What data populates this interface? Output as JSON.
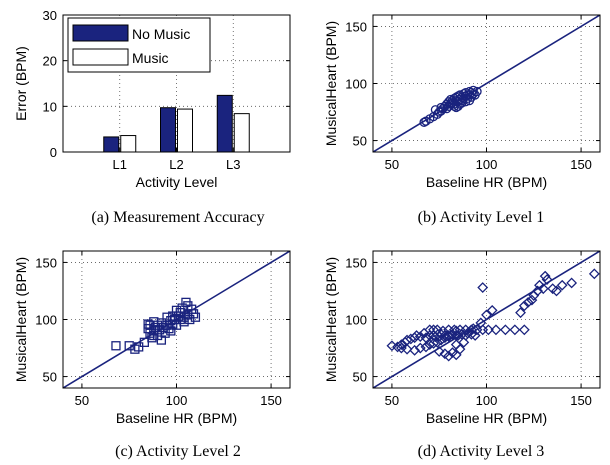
{
  "colors": {
    "primary": "#1a237e",
    "light": "#ffffff",
    "grid": "#555555",
    "fill": "#1a237e"
  },
  "chart_data": [
    {
      "type": "bar",
      "caption": "(a)  Measurement Accuracy",
      "categories": [
        "L1",
        "L2",
        "L3"
      ],
      "series": [
        {
          "name": "No Music",
          "values": [
            3.3,
            9.7,
            12.4
          ],
          "color": "#1a237e"
        },
        {
          "name": "Music",
          "values": [
            3.6,
            9.4,
            8.4
          ],
          "color": "#ffffff"
        }
      ],
      "xlabel": "Activity Level",
      "ylabel": "Error (BPM)",
      "ylim": [
        0,
        30
      ],
      "yticks": [
        0,
        10,
        20,
        30
      ],
      "grid": true,
      "legend": "top-left"
    },
    {
      "type": "scatter",
      "caption": "(b)  Activity Level 1",
      "marker": "circle",
      "xlabel": "Baseline HR (BPM)",
      "ylabel": "MusicalHeart (BPM)",
      "xlim": [
        40,
        160
      ],
      "ylim": [
        40,
        160
      ],
      "xticks": [
        50,
        100,
        150
      ],
      "yticks": [
        50,
        100,
        150
      ],
      "grid": true,
      "identity_line": [
        [
          40,
          40
        ],
        [
          160,
          160
        ]
      ],
      "points": [
        [
          68,
          67
        ],
        [
          67,
          66
        ],
        [
          70,
          69
        ],
        [
          72,
          71
        ],
        [
          74,
          73
        ],
        [
          75,
          75
        ],
        [
          73,
          77
        ],
        [
          76,
          76
        ],
        [
          76,
          79
        ],
        [
          77,
          78
        ],
        [
          78,
          80
        ],
        [
          79,
          78
        ],
        [
          79,
          82
        ],
        [
          80,
          80
        ],
        [
          80,
          84
        ],
        [
          81,
          82
        ],
        [
          81,
          86
        ],
        [
          82,
          83
        ],
        [
          82,
          85
        ],
        [
          83,
          87
        ],
        [
          83,
          82
        ],
        [
          84,
          88
        ],
        [
          84,
          85
        ],
        [
          85,
          84
        ],
        [
          85,
          89
        ],
        [
          86,
          86
        ],
        [
          86,
          90
        ],
        [
          87,
          88
        ],
        [
          87,
          85
        ],
        [
          88,
          91
        ],
        [
          88,
          87
        ],
        [
          89,
          89
        ],
        [
          89,
          92
        ],
        [
          90,
          90
        ],
        [
          90,
          87
        ],
        [
          91,
          93
        ],
        [
          91,
          90
        ],
        [
          92,
          92
        ],
        [
          92,
          88
        ],
        [
          93,
          94
        ],
        [
          93,
          91
        ],
        [
          94,
          90
        ],
        [
          95,
          93
        ],
        [
          85,
          80
        ],
        [
          84,
          79
        ],
        [
          87,
          83
        ],
        [
          86,
          82
        ],
        [
          89,
          84
        ],
        [
          83,
          80
        ],
        [
          91,
          85
        ]
      ]
    },
    {
      "type": "scatter",
      "caption": "(c)  Activity Level 2",
      "marker": "square",
      "xlabel": "Baseline HR (BPM)",
      "ylabel": "MusicalHeart (BPM)",
      "xlim": [
        40,
        160
      ],
      "ylim": [
        40,
        160
      ],
      "xticks": [
        50,
        100,
        150
      ],
      "yticks": [
        50,
        100,
        150
      ],
      "grid": true,
      "identity_line": [
        [
          40,
          40
        ],
        [
          160,
          160
        ]
      ],
      "points": [
        [
          68,
          77
        ],
        [
          75,
          77
        ],
        [
          78,
          74
        ],
        [
          80,
          76
        ],
        [
          83,
          80
        ],
        [
          85,
          92
        ],
        [
          85,
          96
        ],
        [
          86,
          88
        ],
        [
          87,
          84
        ],
        [
          88,
          90
        ],
        [
          88,
          98
        ],
        [
          89,
          93
        ],
        [
          90,
          95
        ],
        [
          90,
          86
        ],
        [
          91,
          91
        ],
        [
          92,
          97
        ],
        [
          92,
          82
        ],
        [
          93,
          93
        ],
        [
          94,
          88
        ],
        [
          95,
          95
        ],
        [
          96,
          92
        ],
        [
          97,
          99
        ],
        [
          98,
          96
        ],
        [
          98,
          103
        ],
        [
          99,
          100
        ],
        [
          100,
          95
        ],
        [
          100,
          108
        ],
        [
          101,
          103
        ],
        [
          102,
          100
        ],
        [
          103,
          110
        ],
        [
          104,
          98
        ],
        [
          105,
          115
        ],
        [
          106,
          104
        ],
        [
          107,
          100
        ],
        [
          108,
          109
        ],
        [
          109,
          105
        ],
        [
          110,
          102
        ],
        [
          86,
          95
        ],
        [
          88,
          86
        ],
        [
          95,
          102
        ],
        [
          97,
          90
        ],
        [
          102,
          106
        ],
        [
          104,
          102
        ],
        [
          106,
          112
        ]
      ]
    },
    {
      "type": "scatter",
      "caption": "(d)  Activity Level 3",
      "marker": "diamond",
      "xlabel": "Baseline HR (BPM)",
      "ylabel": "MusicalHeart (BPM)",
      "xlim": [
        40,
        160
      ],
      "ylim": [
        40,
        160
      ],
      "xticks": [
        50,
        100,
        150
      ],
      "yticks": [
        50,
        100,
        150
      ],
      "grid": true,
      "identity_line": [
        [
          40,
          40
        ],
        [
          160,
          160
        ]
      ],
      "points": [
        [
          50,
          77
        ],
        [
          53,
          76
        ],
        [
          55,
          78
        ],
        [
          57,
          80
        ],
        [
          58,
          82
        ],
        [
          60,
          83
        ],
        [
          62,
          84
        ],
        [
          63,
          86
        ],
        [
          65,
          85
        ],
        [
          67,
          88
        ],
        [
          68,
          84
        ],
        [
          70,
          86
        ],
        [
          72,
          86
        ],
        [
          73,
          85
        ],
        [
          75,
          85
        ],
        [
          76,
          87
        ],
        [
          78,
          86
        ],
        [
          80,
          86
        ],
        [
          82,
          87
        ],
        [
          84,
          86
        ],
        [
          85,
          86
        ],
        [
          87,
          87
        ],
        [
          89,
          86
        ],
        [
          92,
          87
        ],
        [
          94,
          86
        ],
        [
          55,
          75
        ],
        [
          58,
          74
        ],
        [
          62,
          73
        ],
        [
          65,
          75
        ],
        [
          68,
          76
        ],
        [
          70,
          78
        ],
        [
          72,
          79
        ],
        [
          74,
          80
        ],
        [
          76,
          82
        ],
        [
          78,
          84
        ],
        [
          80,
          85
        ],
        [
          82,
          87
        ],
        [
          84,
          90
        ],
        [
          70,
          91
        ],
        [
          72,
          91
        ],
        [
          74,
          91
        ],
        [
          77,
          90
        ],
        [
          80,
          91
        ],
        [
          83,
          91
        ],
        [
          86,
          91
        ],
        [
          89,
          91
        ],
        [
          92,
          91
        ],
        [
          95,
          91
        ],
        [
          98,
          91
        ],
        [
          101,
          91
        ],
        [
          105,
          91
        ],
        [
          110,
          91
        ],
        [
          115,
          91
        ],
        [
          120,
          91
        ],
        [
          75,
          72
        ],
        [
          78,
          70
        ],
        [
          80,
          68
        ],
        [
          82,
          71
        ],
        [
          84,
          69
        ],
        [
          84,
          78
        ],
        [
          86,
          74
        ],
        [
          88,
          80
        ],
        [
          90,
          88
        ],
        [
          93,
          92
        ],
        [
          97,
          97
        ],
        [
          100,
          104
        ],
        [
          103,
          108
        ],
        [
          98,
          128
        ],
        [
          118,
          106
        ],
        [
          120,
          112
        ],
        [
          122,
          115
        ],
        [
          124,
          117
        ],
        [
          125,
          121
        ],
        [
          127,
          125
        ],
        [
          128,
          130
        ],
        [
          130,
          127
        ],
        [
          132,
          135
        ],
        [
          135,
          127
        ],
        [
          137,
          125
        ],
        [
          140,
          130
        ],
        [
          145,
          132
        ],
        [
          131,
          138
        ],
        [
          157,
          140
        ]
      ]
    }
  ]
}
